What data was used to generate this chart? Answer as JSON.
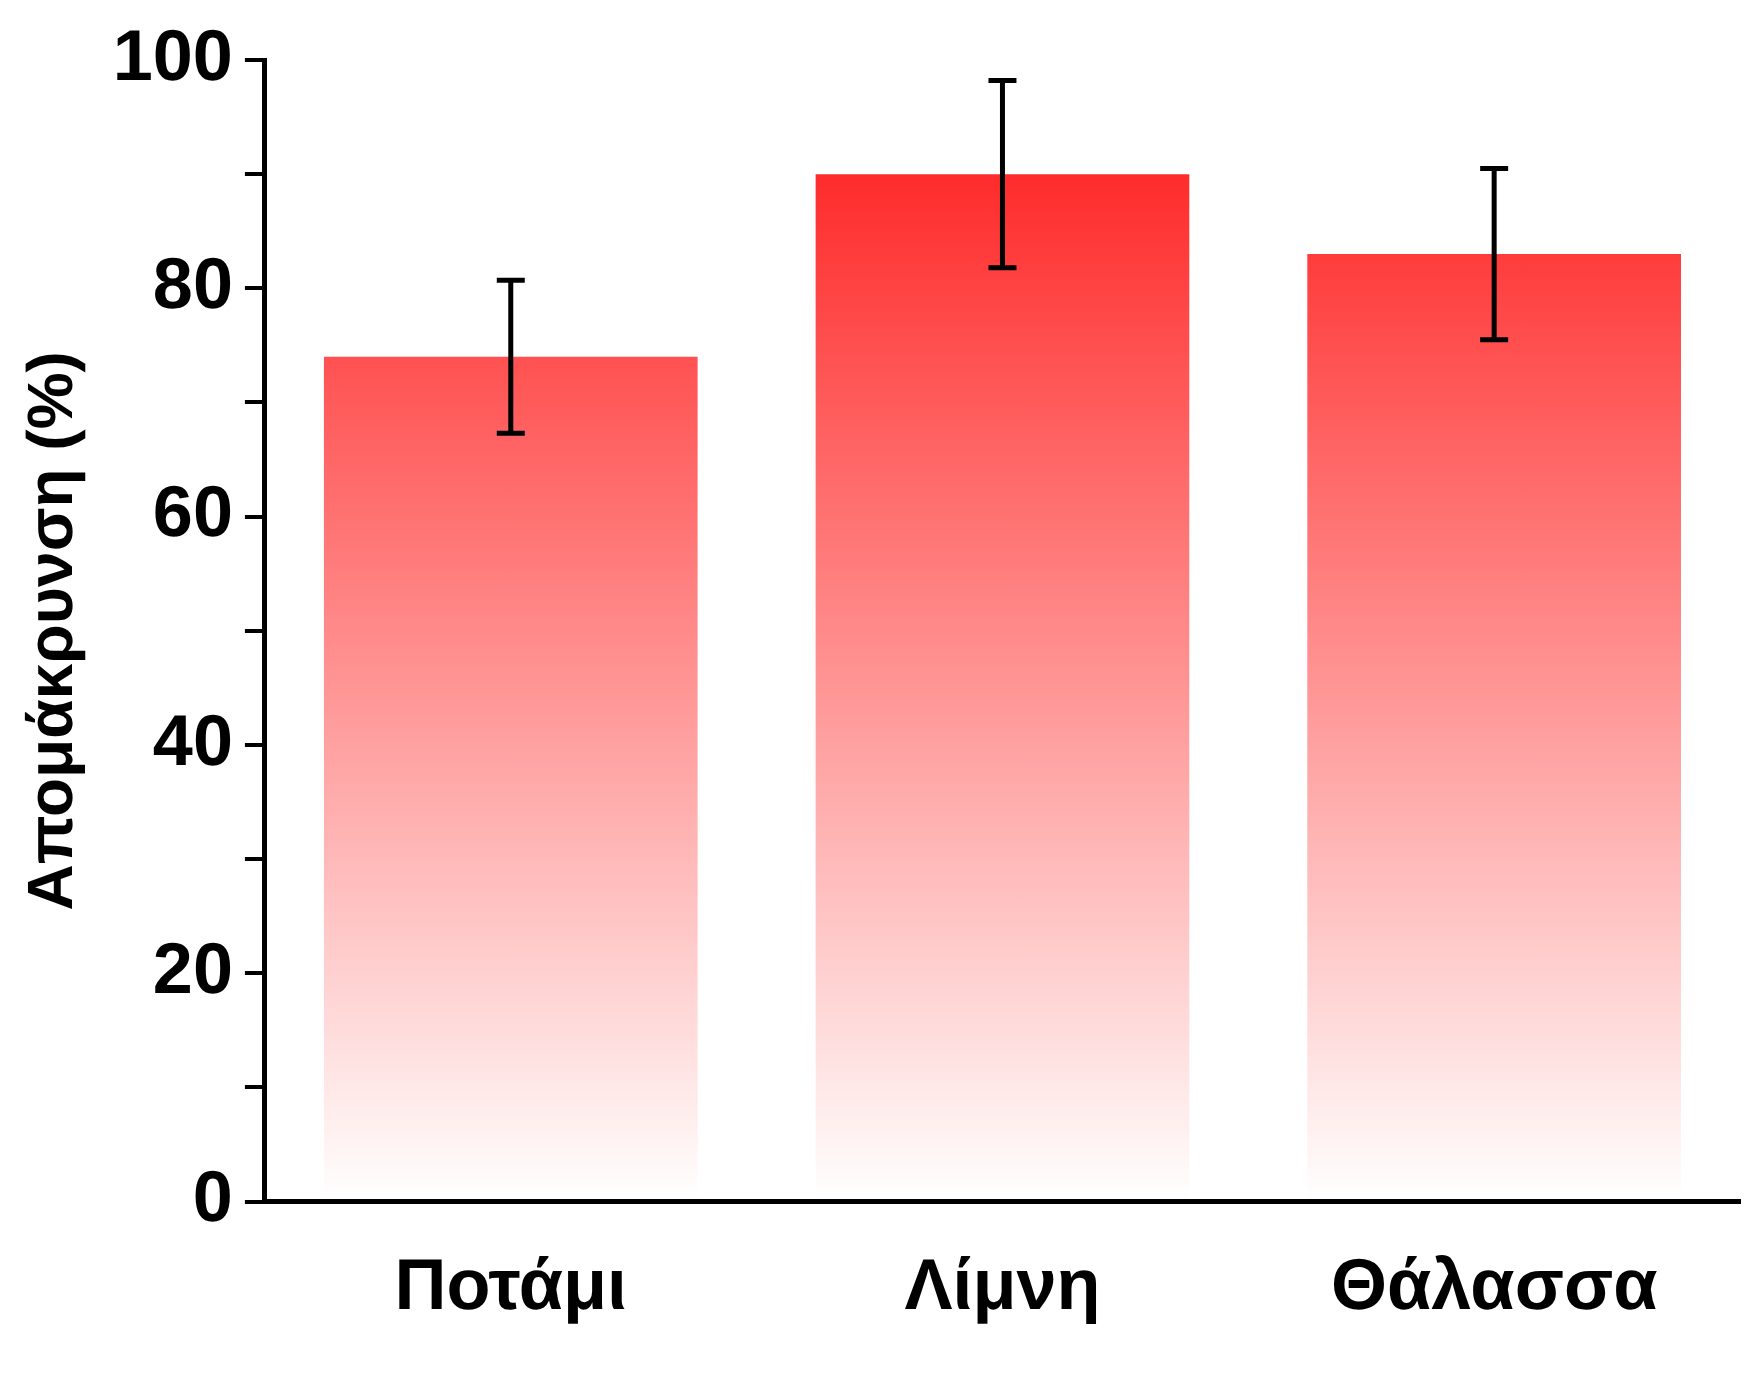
{
  "chart_data": {
    "type": "bar",
    "ylabel": "Απομάκρυνση (%)",
    "categories": [
      "Ποτάμι",
      "Λίμνη",
      "Θάλασσα"
    ],
    "values": [
      74,
      90,
      83
    ],
    "errors": [
      6.7,
      8.2,
      7.5
    ],
    "color": "#ff1414",
    "ylim": [
      0,
      100
    ],
    "yticks": [
      0,
      {
        "value": 10,
        "label": null
      },
      20,
      {
        "value": 30,
        "label": null
      },
      40,
      {
        "value": 50,
        "label": null
      },
      60,
      {
        "value": 70,
        "label": null
      },
      80,
      {
        "value": 90,
        "label": null
      },
      100
    ],
    "grid": false,
    "legend": false
  }
}
